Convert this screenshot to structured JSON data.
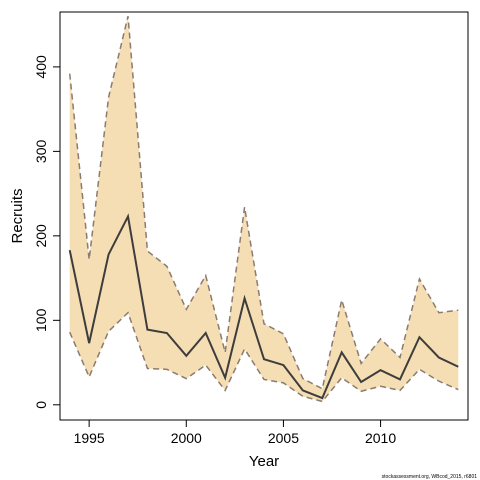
{
  "chart_data": {
    "type": "area",
    "title": "",
    "xlabel": "Year",
    "ylabel": "Recruits",
    "xlim": [
      1993.5,
      2014.5
    ],
    "ylim": [
      -18,
      465
    ],
    "x_ticks": [
      1995,
      2000,
      2005,
      2010
    ],
    "y_ticks": [
      0,
      100,
      200,
      300,
      400
    ],
    "grid": false,
    "x": [
      1994,
      1995,
      1996,
      1997,
      1998,
      1999,
      2000,
      2001,
      2002,
      2003,
      2004,
      2005,
      2006,
      2007,
      2008,
      2009,
      2010,
      2011,
      2012,
      2013,
      2014
    ],
    "series": [
      {
        "role": "estimate",
        "values": [
          183,
          73,
          178,
          223,
          89,
          85,
          58,
          85,
          32,
          126,
          54,
          47,
          17,
          8,
          62,
          27,
          41,
          30,
          80,
          56,
          45
        ]
      },
      {
        "role": "upper-interval",
        "values": [
          392,
          172,
          364,
          460,
          182,
          164,
          113,
          153,
          62,
          234,
          96,
          84,
          31,
          19,
          124,
          49,
          78,
          56,
          149,
          109,
          112
        ]
      },
      {
        "role": "lower-interval",
        "values": [
          86,
          33,
          87,
          109,
          43,
          42,
          31,
          47,
          17,
          66,
          30,
          26,
          10,
          4,
          32,
          16,
          22,
          17,
          42,
          28,
          18
        ]
      }
    ],
    "colors": {
      "band_fill": "#F5DEB3",
      "interval_line": "#8B7B70",
      "estimate_line": "#3D3D3D"
    }
  },
  "footnote": "stockassessment.org, WBcod_2015, r6801"
}
